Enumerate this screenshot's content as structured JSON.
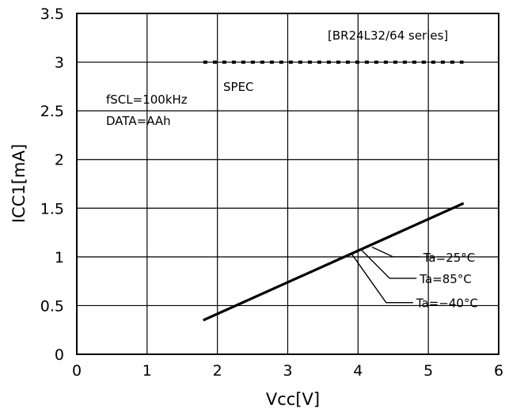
{
  "chart_data": {
    "type": "line",
    "title": "",
    "xlabel": "Vcc[V]",
    "ylabel": "ICC1[mA]",
    "xlim": [
      0,
      6
    ],
    "ylim": [
      0,
      3.5
    ],
    "x_ticks": [
      "0",
      "1",
      "2",
      "3",
      "4",
      "5",
      "6"
    ],
    "y_ticks": [
      "0",
      "0.5",
      "1",
      "1.5",
      "2",
      "2.5",
      "3",
      "3.5"
    ],
    "grid": true,
    "series": [
      {
        "name": "Ta=25°C",
        "x": [
          1.8,
          5.5
        ],
        "y": [
          0.35,
          1.55
        ]
      },
      {
        "name": "Ta=85°C",
        "x": [
          1.8,
          5.5
        ],
        "y": [
          0.35,
          1.55
        ]
      },
      {
        "name": "Ta=-40°C",
        "x": [
          1.8,
          5.5
        ],
        "y": [
          0.35,
          1.55
        ]
      },
      {
        "name": "SPEC",
        "x": [
          1.8,
          5.5
        ],
        "y": [
          3.0,
          3.0
        ],
        "style": "dashed"
      }
    ],
    "annotations": {
      "series_title": "[BR24L32/64 series]",
      "spec_label": "SPEC",
      "conditions": [
        "fSCL=100kHz",
        "DATA=AAh"
      ],
      "curve_labels": [
        "Ta=25°C",
        "Ta=85°C",
        "Ta=−40°C"
      ]
    },
    "colors": {
      "line": "#000000",
      "grid": "#000000",
      "background": "#ffffff"
    }
  }
}
